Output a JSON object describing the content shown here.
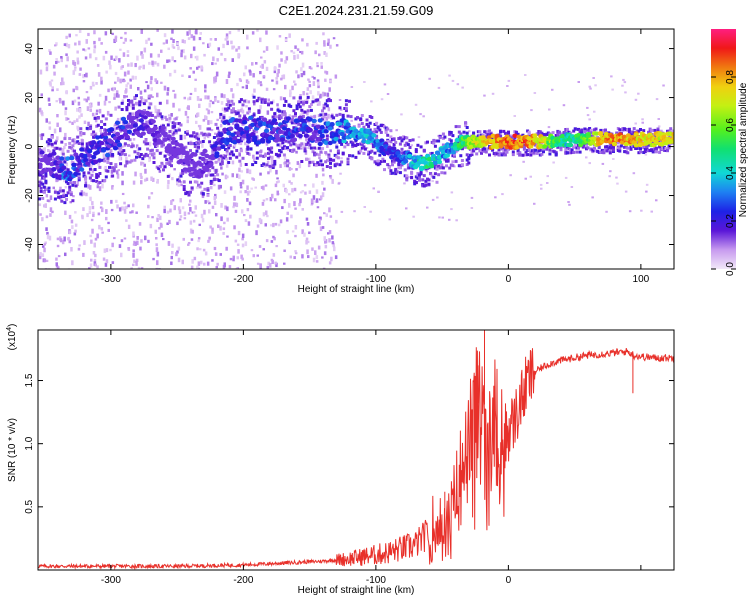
{
  "title": "C2E1.2024.231.21.59.G09",
  "top_chart": {
    "type": "heatmap",
    "xlabel": "Height of straight line (km)",
    "ylabel": "Frequency (Hz)",
    "xlim": [
      -355,
      125
    ],
    "ylim": [
      -50,
      48
    ],
    "xticks": [
      -300,
      -200,
      -100,
      0,
      100
    ],
    "yticks": [
      -40,
      -20,
      0,
      20,
      40
    ],
    "colorbar_label": "Normalized spectral amplitude",
    "colorbar_ticks": [
      "0.0",
      "0.2",
      "0.4",
      "0.6",
      "0.8"
    ],
    "colorbar_range": [
      0,
      1
    ],
    "ridge": {
      "x": [
        -345,
        -335,
        -325,
        -315,
        -305,
        -295,
        -285,
        -275,
        -265,
        -255,
        -245,
        -235,
        -225,
        -215,
        -205,
        -195,
        -185,
        -175,
        -165,
        -155,
        -145,
        -135,
        -125,
        -115,
        -105,
        -95,
        -85,
        -75,
        -65,
        -55,
        -45,
        -35,
        -25,
        -15,
        -5,
        5,
        15,
        25,
        35,
        45,
        55,
        65,
        75,
        85,
        95,
        105,
        115,
        125
      ],
      "y": [
        -7,
        -10,
        -6,
        -2,
        0,
        5,
        8,
        10,
        5,
        0,
        -5,
        -8,
        -5,
        5,
        7,
        7,
        6,
        6,
        7,
        7,
        6,
        6,
        6,
        5,
        4,
        0,
        -3,
        -5,
        -7,
        -5,
        -1,
        2,
        2,
        2,
        2,
        2,
        2,
        2,
        2,
        3,
        3,
        3,
        3,
        3,
        3,
        3,
        3,
        3
      ],
      "amplitude": [
        0.2,
        0.35,
        0.3,
        0.3,
        0.3,
        0.3,
        0.25,
        0.2,
        0.2,
        0.15,
        0.15,
        0.15,
        0.2,
        0.3,
        0.3,
        0.3,
        0.3,
        0.3,
        0.3,
        0.3,
        0.3,
        0.35,
        0.4,
        0.4,
        0.45,
        0.35,
        0.3,
        0.4,
        0.55,
        0.5,
        0.4,
        0.6,
        0.75,
        0.85,
        0.9,
        0.95,
        0.9,
        0.8,
        0.6,
        0.5,
        0.6,
        0.8,
        0.9,
        0.9,
        0.85,
        0.8,
        0.8,
        0.85
      ]
    }
  },
  "bottom_chart": {
    "type": "line",
    "xlabel": "Height of straight line (km)",
    "ylabel": "SNR (10 * v/v)",
    "yscale_label": "(x10",
    "yscale_exp": "4",
    "yscale_close": ")",
    "xlim": [
      -355,
      125
    ],
    "ylim": [
      0,
      1.9
    ],
    "xticks": [
      -300,
      -200,
      -100,
      0
    ],
    "yticks": [
      "0.5",
      "1.0",
      "1.5"
    ],
    "yticks_values": [
      0.5,
      1.0,
      1.5
    ],
    "color": "#e8302a",
    "x": [
      -355,
      -300,
      -250,
      -200,
      -180,
      -160,
      -140,
      -120,
      -100,
      -90,
      -80,
      -70,
      -65,
      -60,
      -55,
      -50,
      -45,
      -40,
      -35,
      -30,
      -25,
      -20,
      -15,
      -10,
      -5,
      0,
      5,
      10,
      15,
      20,
      25,
      30,
      40,
      50,
      60,
      70,
      80,
      90,
      95,
      100,
      110,
      125
    ],
    "y": [
      0.03,
      0.03,
      0.03,
      0.04,
      0.05,
      0.06,
      0.07,
      0.09,
      0.12,
      0.14,
      0.17,
      0.2,
      0.25,
      0.3,
      0.35,
      0.5,
      0.3,
      0.55,
      0.85,
      1.0,
      1.3,
      1.35,
      1.25,
      1.15,
      1.05,
      1.1,
      1.2,
      1.35,
      1.5,
      1.57,
      1.6,
      1.63,
      1.66,
      1.68,
      1.7,
      1.71,
      1.72,
      1.73,
      1.7,
      1.69,
      1.68,
      1.68
    ],
    "spikes": [
      {
        "x": -18,
        "y": 1.9
      },
      {
        "x": -23,
        "y": 1.62
      },
      {
        "x": -48,
        "y": 0.62
      },
      {
        "x": 94,
        "y": 1.4
      }
    ]
  }
}
